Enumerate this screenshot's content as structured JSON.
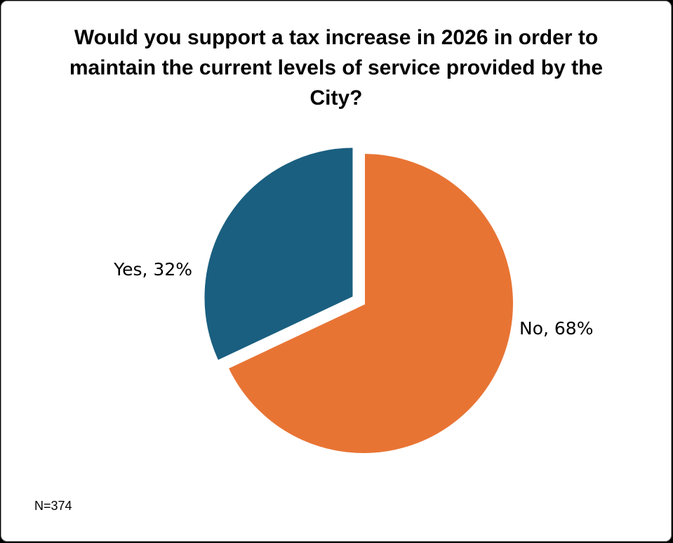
{
  "chart_data": {
    "type": "pie",
    "title": "Would you support a tax increase in 2026 in order to maintain the current levels of service provided by the City?",
    "categories": [
      "Yes",
      "No"
    ],
    "values": [
      32,
      68
    ],
    "value_unit": "%",
    "labels": [
      "Yes, 32%",
      "No, 68%"
    ],
    "colors": [
      "#1a5f80",
      "#e87434"
    ],
    "exploded_slice": "Yes",
    "legend": "none",
    "note": "N=374"
  }
}
